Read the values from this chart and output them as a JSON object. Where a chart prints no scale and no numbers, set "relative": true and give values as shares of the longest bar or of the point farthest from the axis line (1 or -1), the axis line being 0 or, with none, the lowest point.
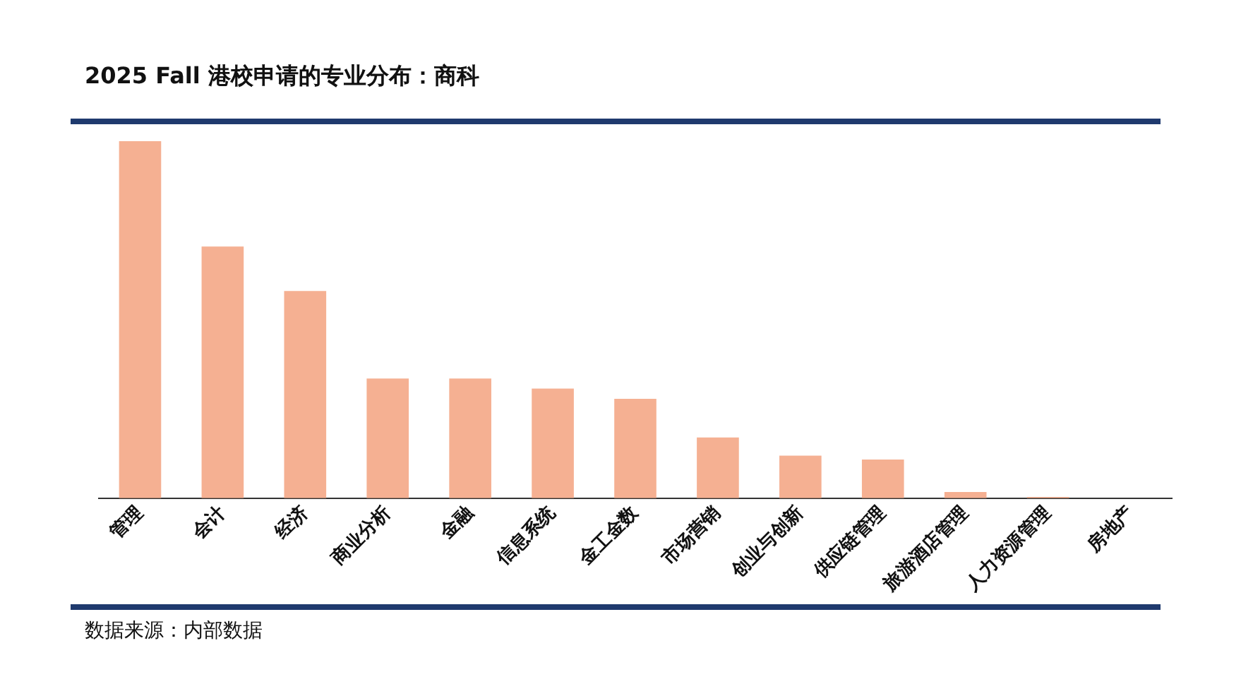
{
  "chart_data": {
    "type": "bar",
    "title": "2025 Fall 港校申请的专业分布：商科",
    "relative": true,
    "categories": [
      "管理",
      "会计",
      "经济",
      "商业分析",
      "金融",
      "信息系统",
      "金工金数",
      "市场营销",
      "创业与创新",
      "供应链管理",
      "旅游酒店管理",
      "人力资源管理",
      "房地产"
    ],
    "values": [
      1,
      0.705,
      0.58,
      0.335,
      0.335,
      0.307,
      0.278,
      0.17,
      0.119,
      0.108,
      0.017,
      0.003,
      0
    ],
    "color": "#f5b092",
    "grid": false,
    "legend": false,
    "annotations": [
      "数据来源：内部数据"
    ]
  }
}
